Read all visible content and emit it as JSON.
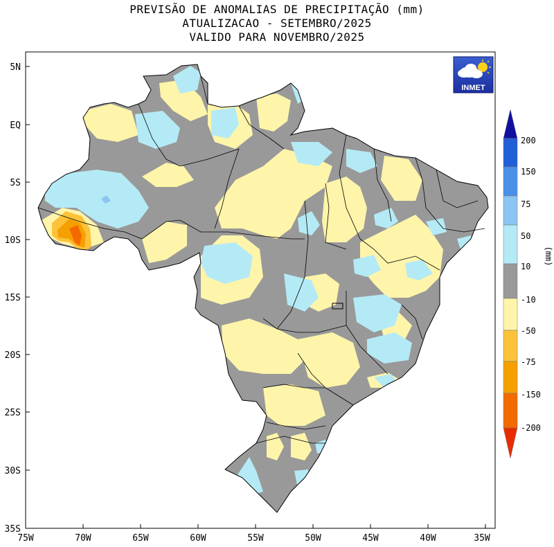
{
  "title": {
    "line1": "PREVISÃO DE ANOMALIAS DE PRECIPITAÇÃO (mm)",
    "line2": "ATUALIZACAO - SETEMBRO/2025",
    "line3": "VALIDO PARA NOVEMBRO/2025"
  },
  "logo": {
    "text": "INMET",
    "icon": "cloud-sun-icon"
  },
  "colorbar": {
    "unit": "(mm)",
    "levels": [
      {
        "label": "200",
        "color": "#1010a0"
      },
      {
        "label": "150",
        "color": "#1f5fd8"
      },
      {
        "label": "75",
        "color": "#4a90e8"
      },
      {
        "label": "50",
        "color": "#8cc4f2"
      },
      {
        "label": "10",
        "color": "#b4eaf5"
      },
      {
        "label": "",
        "color": "#999999"
      },
      {
        "label": "-10",
        "color": "#fff5aa"
      },
      {
        "label": "-50",
        "color": "#fcc23a"
      },
      {
        "label": "-75",
        "color": "#f5a000"
      },
      {
        "label": "-150",
        "color": "#f26a00"
      },
      {
        "label": "-200",
        "color": "#e82c00"
      }
    ]
  },
  "axes": {
    "lon_labels": [
      "75W",
      "70W",
      "65W",
      "60W",
      "55W",
      "50W",
      "45W",
      "40W",
      "35W"
    ],
    "lat_labels": [
      "5N",
      "EQ",
      "5S",
      "10S",
      "15S",
      "20S",
      "25S",
      "30S",
      "35S"
    ]
  },
  "colors": {
    "gray": "#999999",
    "light_blue": "#b4eaf5",
    "medium_blue": "#8cc4f2",
    "light_yellow": "#fff5aa",
    "orange_light": "#fcc23a",
    "orange": "#f5a000",
    "dark_orange": "#f26a00"
  }
}
